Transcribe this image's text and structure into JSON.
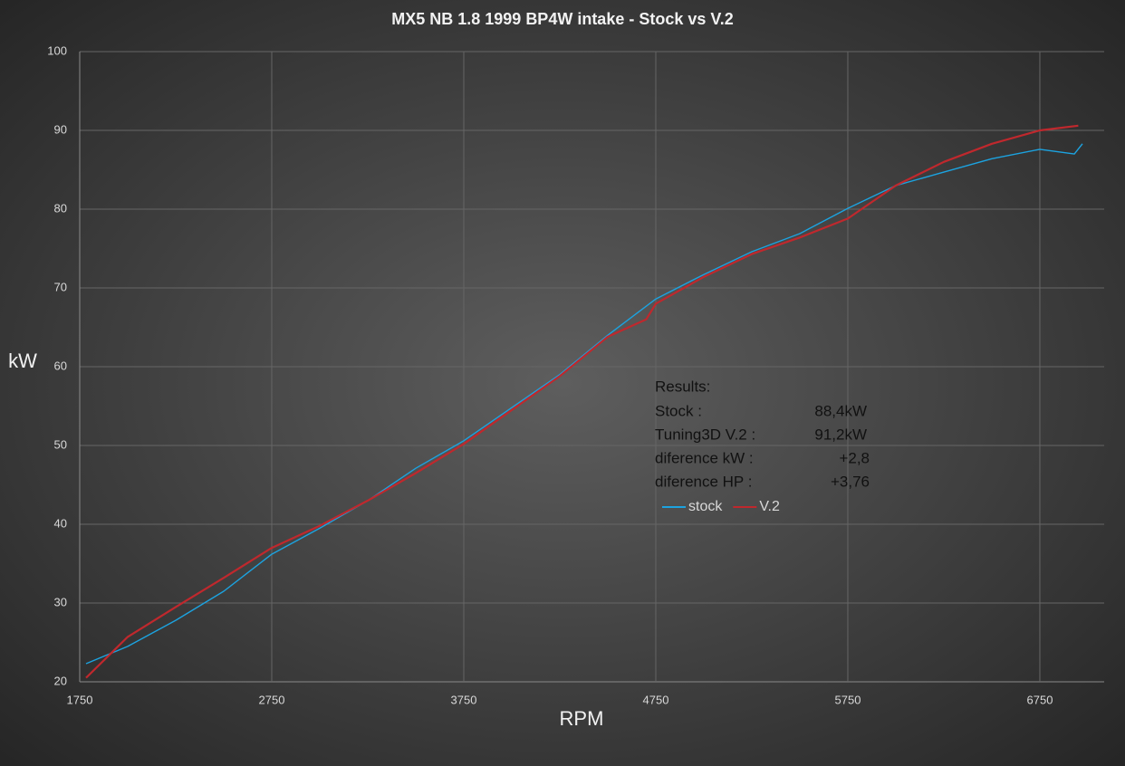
{
  "chart_data": {
    "type": "line",
    "title": "MX5 NB 1.8 1999 BP4W intake - Stock vs V.2",
    "x_label": "RPM",
    "y_label": "kW",
    "xlim": [
      1750,
      7085
    ],
    "xticks": [
      1750,
      2750,
      3750,
      4750,
      5750,
      6750
    ],
    "ylim": [
      20,
      100
    ],
    "yticks": [
      20,
      30,
      40,
      50,
      60,
      70,
      80,
      90,
      100
    ],
    "grid": true,
    "series": [
      {
        "name": "stock",
        "color": "#1ca3e0",
        "x": [
          1783,
          2000,
          2250,
          2500,
          2750,
          3000,
          3250,
          3500,
          3750,
          4000,
          4250,
          4500,
          4750,
          5000,
          5250,
          5500,
          5750,
          6000,
          6250,
          6500,
          6750,
          6930,
          6972
        ],
        "values": [
          22.3,
          24.5,
          27.8,
          31.5,
          36.2,
          39.5,
          43.0,
          47.1,
          50.6,
          54.8,
          59.0,
          64.0,
          68.6,
          71.7,
          74.6,
          76.9,
          80.1,
          83.0,
          84.7,
          86.4,
          87.6,
          87.0,
          88.3
        ]
      },
      {
        "name": "V.2",
        "color": "#c0282d",
        "x": [
          1783,
          2000,
          2250,
          2500,
          2750,
          3000,
          3250,
          3500,
          3750,
          4000,
          4250,
          4500,
          4700,
          4750,
          5000,
          5250,
          5500,
          5750,
          6000,
          6250,
          6500,
          6750,
          6950
        ],
        "values": [
          20.5,
          25.7,
          29.5,
          33.2,
          37.0,
          39.8,
          43.0,
          46.5,
          50.2,
          54.5,
          58.8,
          63.8,
          66.0,
          68.0,
          71.4,
          74.3,
          76.4,
          78.8,
          83.0,
          86.0,
          88.3,
          90.0,
          90.6
        ]
      }
    ],
    "annotation": {
      "title": "Results:",
      "rows": [
        [
          "Stock :",
          "88,4kW"
        ],
        [
          "Tuning3D V.2 :",
          "91,2kW"
        ],
        [
          "diference kW :",
          "+2,8"
        ],
        [
          "diference HP :",
          "+3,76"
        ]
      ]
    }
  }
}
